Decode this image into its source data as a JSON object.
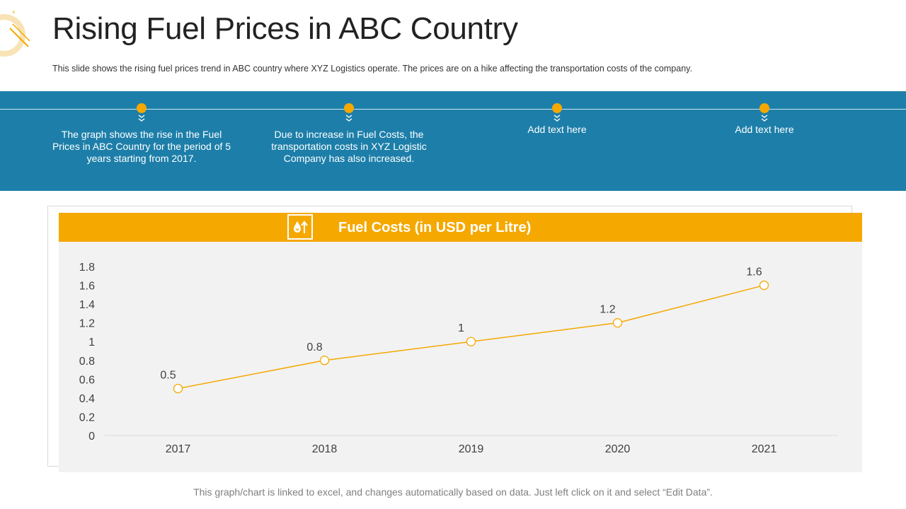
{
  "header": {
    "title": "Rising Fuel Prices in ABC Country",
    "subtitle": "This slide shows the rising fuel prices trend in ABC country where XYZ Logistics operate. The prices are on a hike affecting the transportation costs of the company."
  },
  "timeline": [
    {
      "text": "The graph shows the rise in the Fuel Prices in ABC Country for the period of 5 years starting from 2017."
    },
    {
      "text": "Due to increase in Fuel Costs, the transportation costs in XYZ Logistic Company has also increased."
    },
    {
      "text": "Add text here"
    },
    {
      "text": "Add text here"
    }
  ],
  "colors": {
    "accent": "#f5a800",
    "band": "#1d7fa9",
    "panel": "#f2f2f2"
  },
  "icons": {
    "chart_header_icon": "fuel-drop-icon",
    "timeline_marker": "chevron-down-icon"
  },
  "chart_data": {
    "type": "line",
    "title": "Fuel Costs (in USD per Litre)",
    "categories": [
      "2017",
      "2018",
      "2019",
      "2020",
      "2021"
    ],
    "values": [
      0.5,
      0.8,
      1,
      1.2,
      1.6
    ],
    "data_labels": [
      "0.5",
      "0.8",
      "1",
      "1.2",
      "1.6"
    ],
    "yticks": [
      "0",
      "0.2",
      "0.4",
      "0.6",
      "0.8",
      "1",
      "1.2",
      "1.4",
      "1.6",
      "1.8"
    ],
    "ylim": [
      0,
      1.8
    ],
    "xlabel": "",
    "ylabel": "",
    "grid": false,
    "legend": "none"
  },
  "footer": {
    "note": "This graph/chart is linked to excel, and changes automatically based on data. Just left click on it and select “Edit Data”."
  }
}
